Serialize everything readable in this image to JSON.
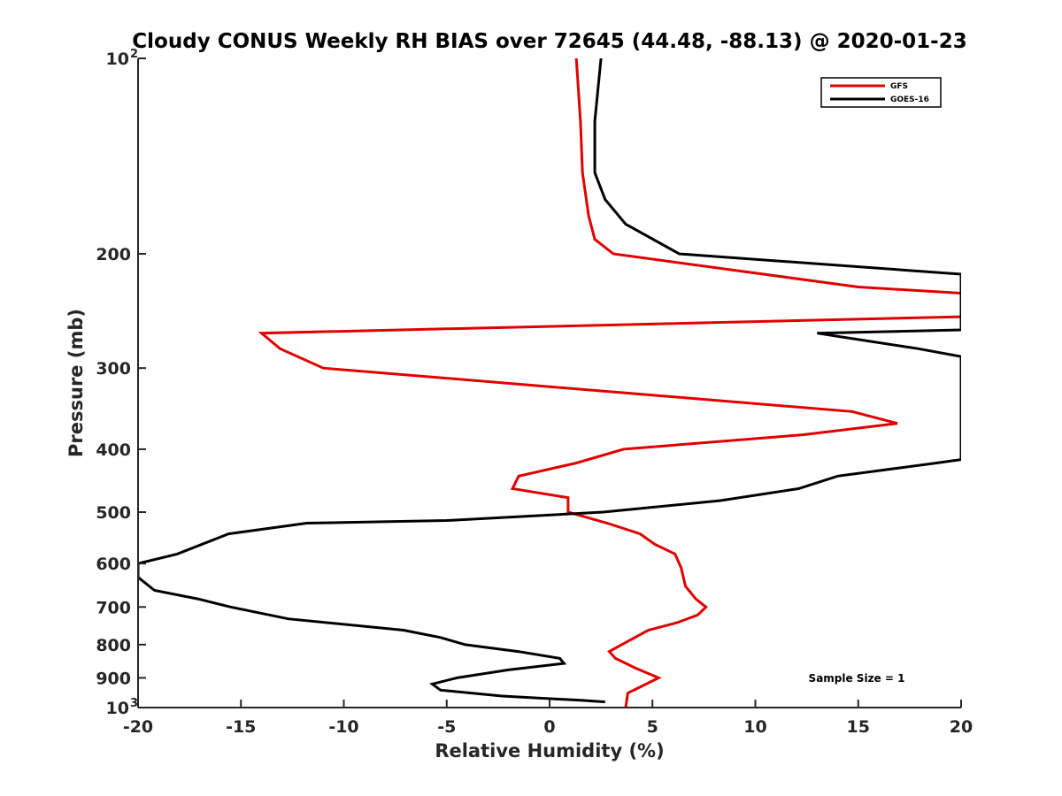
{
  "chart_data": {
    "type": "line",
    "title": "Cloudy CONUS Weekly RH BIAS over 72645 (44.48, -88.13) @ 2020-01-23",
    "xlabel": "Relative Humidity (%)",
    "ylabel": "Pressure (mb)",
    "xlim": [
      -20,
      20
    ],
    "ylim": [
      100,
      1000
    ],
    "yscale": "log",
    "yreversed": true,
    "grid": false,
    "legend_position": "top-right",
    "xticks": [
      "-20",
      "-15",
      "-10",
      "-5",
      "0",
      "5",
      "10",
      "15",
      "20"
    ],
    "yticks": [
      {
        "base": "10",
        "exp": "2"
      },
      {
        "base": "200",
        "exp": ""
      },
      {
        "base": "300",
        "exp": ""
      },
      {
        "base": "400",
        "exp": ""
      },
      {
        "base": "500",
        "exp": ""
      },
      {
        "base": "600",
        "exp": ""
      },
      {
        "base": "700",
        "exp": ""
      },
      {
        "base": "800",
        "exp": ""
      },
      {
        "base": "900",
        "exp": ""
      },
      {
        "base": "10",
        "exp": "3"
      }
    ],
    "annotation": "Sample Size = 1",
    "series": [
      {
        "name": "GFS",
        "color": "#e00000",
        "points": [
          [
            1.3,
            100
          ],
          [
            1.5,
            125
          ],
          [
            1.6,
            150
          ],
          [
            1.9,
            175
          ],
          [
            2.2,
            190
          ],
          [
            3.1,
            200
          ],
          [
            15,
            225
          ],
          [
            20,
            230
          ],
          [
            20,
            250
          ],
          [
            -14,
            265
          ],
          [
            -13.1,
            280
          ],
          [
            -11,
            300
          ],
          [
            14.7,
            350
          ],
          [
            16.9,
            365
          ],
          [
            12.3,
            380
          ],
          [
            3.6,
            400
          ],
          [
            1.3,
            420
          ],
          [
            -1.5,
            440
          ],
          [
            -1.8,
            460
          ],
          [
            0.9,
            475
          ],
          [
            0.9,
            500
          ],
          [
            2.8,
            520
          ],
          [
            4.4,
            540
          ],
          [
            5.1,
            560
          ],
          [
            6.1,
            580
          ],
          [
            6.4,
            610
          ],
          [
            6.6,
            650
          ],
          [
            7.1,
            680
          ],
          [
            7.6,
            700
          ],
          [
            7.2,
            720
          ],
          [
            6.2,
            740
          ],
          [
            4.8,
            760
          ],
          [
            3.5,
            800
          ],
          [
            2.9,
            820
          ],
          [
            3.2,
            840
          ],
          [
            4.2,
            870
          ],
          [
            5.3,
            900
          ],
          [
            5.0,
            910
          ],
          [
            3.8,
            950
          ],
          [
            3.7,
            1000
          ]
        ]
      },
      {
        "name": "GOES-16",
        "color": "#000000",
        "points": [
          [
            2.5,
            100
          ],
          [
            2.2,
            125
          ],
          [
            2.2,
            150
          ],
          [
            2.7,
            165
          ],
          [
            3.7,
            180
          ],
          [
            6.3,
            200
          ],
          [
            20,
            215
          ],
          [
            20,
            262
          ],
          [
            13,
            265
          ],
          [
            17.9,
            280
          ],
          [
            20,
            288
          ],
          [
            20,
            415
          ],
          [
            18.8,
            420
          ],
          [
            14,
            440
          ],
          [
            12.1,
            460
          ],
          [
            8.3,
            480
          ],
          [
            2.6,
            500
          ],
          [
            -5,
            515
          ],
          [
            -11.8,
            520
          ],
          [
            -15.6,
            540
          ],
          [
            -18.1,
            580
          ],
          [
            -20,
            600
          ],
          [
            -20,
            630
          ],
          [
            -19.2,
            660
          ],
          [
            -17.1,
            680
          ],
          [
            -15.5,
            700
          ],
          [
            -12.7,
            730
          ],
          [
            -7.1,
            760
          ],
          [
            -5.3,
            780
          ],
          [
            -4.1,
            800
          ],
          [
            -1.5,
            820
          ],
          [
            0.5,
            840
          ],
          [
            0.7,
            855
          ],
          [
            -2.0,
            875
          ],
          [
            -4.5,
            900
          ],
          [
            -5.7,
            920
          ],
          [
            -5.3,
            940
          ],
          [
            -2.3,
            960
          ],
          [
            1.6,
            975
          ],
          [
            2.7,
            980
          ]
        ]
      }
    ]
  }
}
